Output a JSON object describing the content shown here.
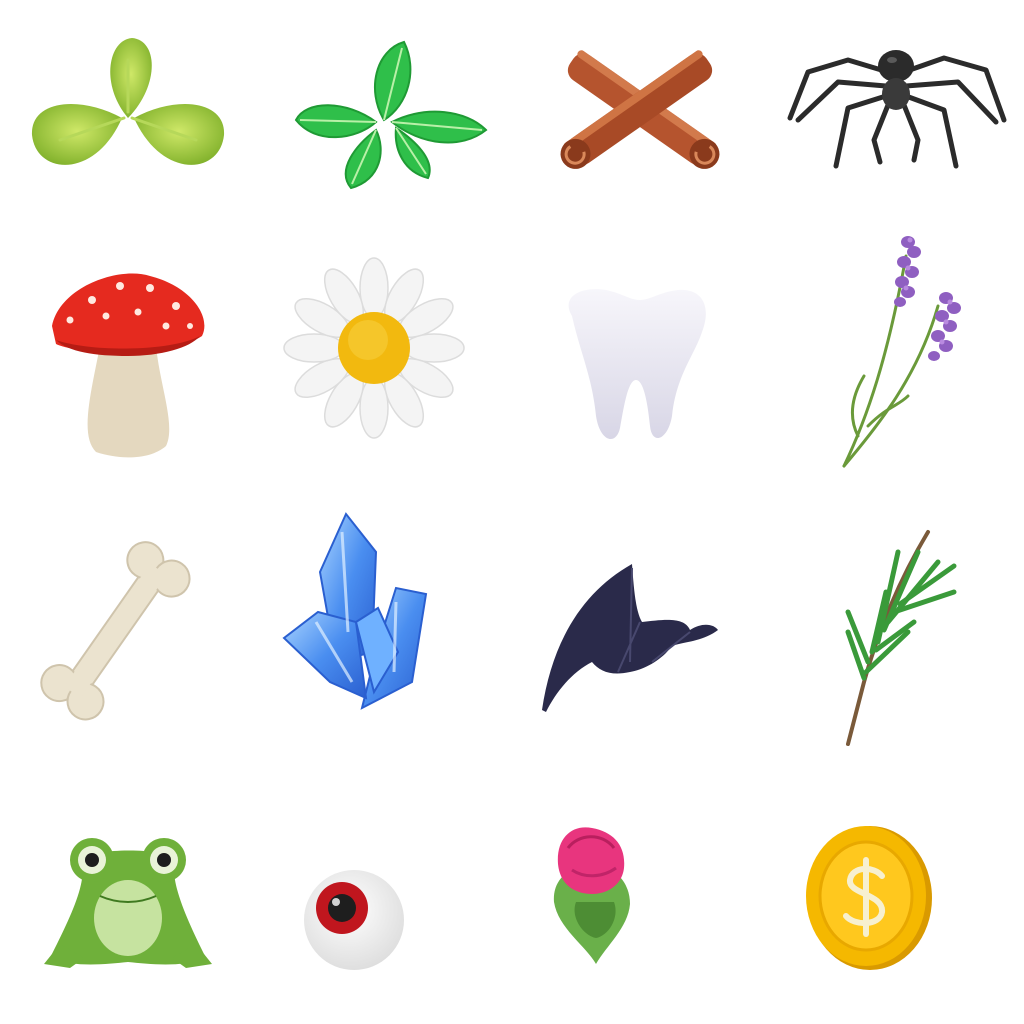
{
  "items": [
    {
      "icon": "basil-leaves-icon"
    },
    {
      "icon": "mint-leaves-icon"
    },
    {
      "icon": "cinnamon-sticks-icon"
    },
    {
      "icon": "spider-icon"
    },
    {
      "icon": "mushroom-icon"
    },
    {
      "icon": "daisy-icon"
    },
    {
      "icon": "tooth-icon"
    },
    {
      "icon": "lavender-icon"
    },
    {
      "icon": "bone-icon"
    },
    {
      "icon": "crystal-icon"
    },
    {
      "icon": "bat-wing-icon"
    },
    {
      "icon": "rosemary-icon"
    },
    {
      "icon": "frog-icon"
    },
    {
      "icon": "eyeball-icon"
    },
    {
      "icon": "rose-bud-icon"
    },
    {
      "icon": "gold-coin-icon"
    }
  ],
  "colors": {
    "leaf_green": "#9ccc3a",
    "mint_green": "#2fbf4a",
    "cinnamon": "#b5542e",
    "spider": "#2b2b2b",
    "mushroom_cap": "#e52a1f",
    "daisy_center": "#f2b90f",
    "lavender": "#8f5fc1",
    "crystal": "#4a8ef0",
    "bat_wing": "#2a2a4a",
    "coin_gold": "#f5b800"
  }
}
